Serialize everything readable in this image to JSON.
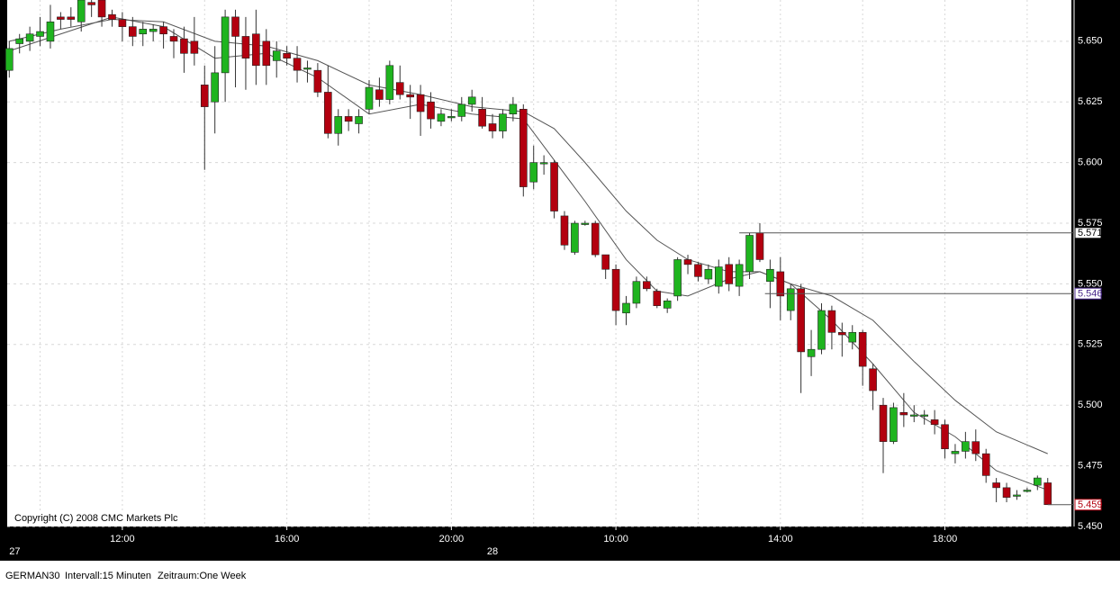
{
  "chart_data": {
    "type": "candlestick",
    "copyright": "Copyright (C) 2008 CMC Markets Plc",
    "footer": [
      "GERMAN30",
      "Intervall:15 Minuten",
      "Zeitraum:One Week"
    ],
    "xlim": [
      -0.2,
      103.3
    ],
    "ylim": [
      5450,
      5667
    ],
    "yticks": [
      {
        "value": 5450,
        "label": "5.450"
      },
      {
        "value": 5475,
        "label": "5.475"
      },
      {
        "value": 5500,
        "label": "5.500"
      },
      {
        "value": 5525,
        "label": "5.525"
      },
      {
        "value": 5550,
        "label": "5.550"
      },
      {
        "value": 5575,
        "label": "5.575"
      },
      {
        "value": 5600,
        "label": "5.600"
      },
      {
        "value": 5625,
        "label": "5.625"
      },
      {
        "value": 5650,
        "label": "5.650"
      }
    ],
    "xticks": [
      {
        "value": 11,
        "label": "12:00"
      },
      {
        "value": 27,
        "label": "16:00"
      },
      {
        "value": 43,
        "label": "20:00"
      },
      {
        "value": 59,
        "label": "10:00"
      },
      {
        "value": 75,
        "label": "14:00"
      },
      {
        "value": 91,
        "label": "18:00"
      }
    ],
    "date_ticks": [
      {
        "value": 0,
        "label": "27"
      },
      {
        "value": 47,
        "label": "28"
      }
    ],
    "xgrid": [
      3,
      11,
      19,
      27,
      35,
      43,
      51,
      59,
      67,
      75,
      83,
      91,
      99
    ],
    "grid": true,
    "up_color": "#1fb41f",
    "down_color": "#b3000f",
    "open": [
      5638,
      5649,
      5650,
      5652,
      5650,
      5660,
      5660,
      5658,
      5666,
      5667,
      5661,
      5659,
      5656,
      5653,
      5654,
      5656,
      5652,
      5651,
      5650,
      5632,
      5625,
      5637,
      5660,
      5652,
      5653,
      5650,
      5642,
      5645,
      5643,
      5639,
      5638,
      5629,
      5612,
      5619,
      5616,
      5622,
      5630,
      5626,
      5633,
      5628,
      5628,
      5625,
      5617,
      5619,
      5619,
      5624,
      5622,
      5616,
      5613,
      5620,
      5622,
      5592,
      5600,
      5600,
      5578,
      5563,
      5575,
      5575,
      5562,
      5556,
      5538,
      5542,
      5551,
      5547,
      5540,
      5545,
      5560,
      5558,
      5552,
      5549,
      5558,
      5549,
      5555,
      5571,
      5551,
      5555,
      5539,
      5548,
      5520,
      5523,
      5539,
      5530,
      5526,
      5530,
      5515,
      5500,
      5485,
      5497,
      5496,
      5496,
      5494,
      5492,
      5480,
      5481,
      5485,
      5480,
      5468,
      5466,
      5463,
      5465,
      5467,
      5468
    ],
    "high": [
      5650,
      5653,
      5656,
      5660,
      5665,
      5662,
      5664,
      5667,
      5667,
      5667,
      5663,
      5662,
      5660,
      5658,
      5657,
      5658,
      5655,
      5656,
      5660,
      5640,
      5648,
      5663,
      5663,
      5660,
      5663,
      5655,
      5650,
      5648,
      5648,
      5642,
      5641,
      5640,
      5622,
      5622,
      5622,
      5634,
      5635,
      5642,
      5640,
      5632,
      5632,
      5629,
      5622,
      5622,
      5627,
      5630,
      5627,
      5620,
      5622,
      5627,
      5624,
      5607,
      5603,
      5601,
      5580,
      5576,
      5576,
      5576,
      5562,
      5558,
      5545,
      5553,
      5553,
      5548,
      5544,
      5561,
      5562,
      5559,
      5558,
      5560,
      5561,
      5560,
      5571,
      5575,
      5560,
      5561,
      5550,
      5550,
      5531,
      5542,
      5541,
      5534,
      5533,
      5531,
      5517,
      5503,
      5501,
      5505,
      5500,
      5498,
      5498,
      5494,
      5484,
      5489,
      5490,
      5482,
      5470,
      5468,
      5465,
      5466,
      5471,
      5470
    ],
    "low": [
      5635,
      5645,
      5646,
      5648,
      5647,
      5655,
      5656,
      5654,
      5660,
      5656,
      5656,
      5650,
      5648,
      5648,
      5650,
      5647,
      5643,
      5637,
      5640,
      5597,
      5612,
      5625,
      5631,
      5630,
      5632,
      5632,
      5635,
      5640,
      5633,
      5633,
      5627,
      5610,
      5607,
      5613,
      5612,
      5620,
      5623,
      5624,
      5626,
      5618,
      5611,
      5614,
      5615,
      5617,
      5617,
      5621,
      5614,
      5610,
      5610,
      5617,
      5586,
      5589,
      5595,
      5577,
      5564,
      5562,
      5574,
      5561,
      5552,
      5533,
      5533,
      5540,
      5547,
      5540,
      5538,
      5543,
      5554,
      5551,
      5550,
      5546,
      5547,
      5545,
      5552,
      5559,
      5540,
      5535,
      5535,
      5505,
      5512,
      5521,
      5523,
      5520,
      5523,
      5508,
      5498,
      5472,
      5484,
      5491,
      5493,
      5492,
      5488,
      5478,
      5476,
      5478,
      5477,
      5468,
      5460,
      5460,
      5461,
      5464,
      5465,
      5459
    ],
    "close": [
      5647,
      5651,
      5653,
      5654,
      5658,
      5659,
      5659,
      5667,
      5665,
      5660,
      5659,
      5656,
      5652,
      5655,
      5655,
      5653,
      5650,
      5645,
      5645,
      5623,
      5637,
      5660,
      5652,
      5643,
      5640,
      5640,
      5646,
      5643,
      5638,
      5639,
      5629,
      5612,
      5619,
      5617,
      5619,
      5631,
      5626,
      5640,
      5628,
      5627,
      5621,
      5618,
      5620,
      5619,
      5624,
      5627,
      5615,
      5613,
      5620,
      5624,
      5590,
      5600,
      5600,
      5580,
      5566,
      5575,
      5575,
      5562,
      5556,
      5539,
      5542,
      5551,
      5548,
      5541,
      5543,
      5560,
      5558,
      5553,
      5556,
      5557,
      5550,
      5558,
      5570,
      5560,
      5556,
      5545,
      5548,
      5522,
      5523,
      5539,
      5530,
      5529,
      5530,
      5516,
      5506,
      5485,
      5499,
      5496,
      5496,
      5496,
      5492,
      5482,
      5481,
      5485,
      5480,
      5471,
      5466,
      5462,
      5463,
      5465,
      5470,
      5459
    ],
    "averages": [
      {
        "color": "#555555",
        "x": [
          0,
          5,
          10,
          15,
          20,
          25,
          30,
          35,
          40,
          45,
          50,
          53,
          56,
          60,
          63,
          66,
          70,
          73,
          76,
          80,
          84,
          88,
          92,
          96,
          101
        ],
        "values": [
          5646,
          5653,
          5660,
          5656,
          5643,
          5645,
          5635,
          5620,
          5624,
          5620,
          5618,
          5601,
          5584,
          5560,
          5547,
          5545,
          5552,
          5555,
          5550,
          5535,
          5517,
          5497,
          5487,
          5473,
          5465
        ]
      },
      {
        "color": "#555555",
        "x": [
          0,
          5,
          10,
          15,
          20,
          25,
          30,
          35,
          40,
          45,
          50,
          53,
          56,
          60,
          63,
          66,
          70,
          73,
          76,
          80,
          84,
          88,
          92,
          96,
          101
        ],
        "values": [
          5650,
          5655,
          5659,
          5658,
          5650,
          5648,
          5642,
          5632,
          5628,
          5623,
          5621,
          5614,
          5600,
          5580,
          5568,
          5560,
          5555,
          5555,
          5550,
          5545,
          5535,
          5518,
          5502,
          5489,
          5480
        ]
      }
    ],
    "price_lines": [
      {
        "value": 5571,
        "label": "5.571",
        "from_x": 71,
        "color": "#000000"
      },
      {
        "value": 5546,
        "label": "5.546",
        "from_x": 73.5,
        "color": "#4b2a8c"
      },
      {
        "value": 5459,
        "label": "5.459",
        "from_x": 101,
        "color": "#b3000f"
      }
    ]
  }
}
